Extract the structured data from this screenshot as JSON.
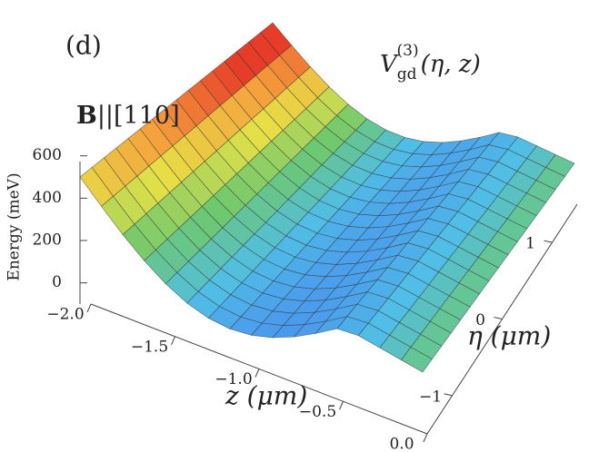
{
  "panel_label": "(d)",
  "annotation": {
    "bold": "B",
    "rest": "||[110]"
  },
  "chart_data": {
    "type": "surface",
    "title": {
      "main": "V",
      "sub": "gd",
      "sup": "(3)",
      "args": "(η, z)"
    },
    "zlabel": "Energy (meV)",
    "xlabel": "z (μm)",
    "ylabel": "η (μm)",
    "zlim": [
      -100,
      650
    ],
    "zticks": [
      0,
      200,
      400,
      600
    ],
    "xlim": [
      -2.0,
      0.0
    ],
    "xticks": [
      {
        "value": -2.0,
        "label": "−2.0"
      },
      {
        "value": -1.5,
        "label": "−1.5"
      },
      {
        "value": -1.0,
        "label": "−1.0"
      },
      {
        "value": -0.5,
        "label": "−0.5"
      },
      {
        "value": 0.0,
        "label": "0.0"
      }
    ],
    "ylim": [
      -1.5,
      1.5
    ],
    "yticks": [
      {
        "value": -1,
        "label": "−1"
      },
      0,
      1
    ]
  }
}
